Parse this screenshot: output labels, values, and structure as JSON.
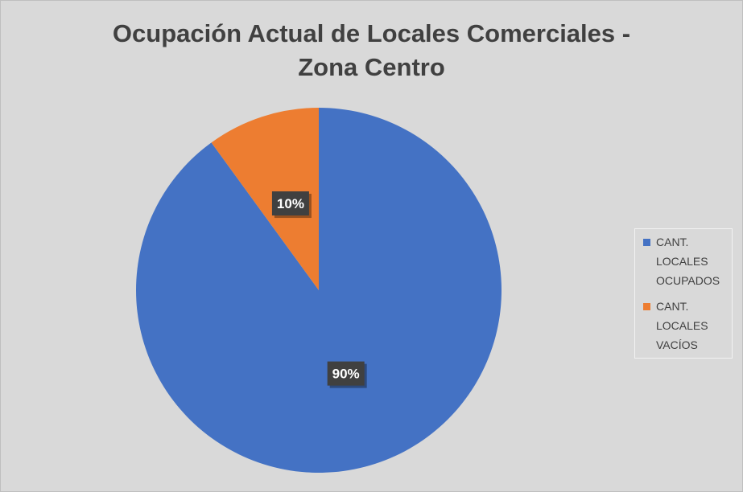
{
  "chart_data": {
    "type": "pie",
    "title_lines": [
      "Ocupación Actual de Locales Comerciales -",
      "Zona Centro"
    ],
    "slices": [
      {
        "label_lines": [
          "CANT.",
          "LOCALES",
          "OCUPADOS"
        ],
        "value": 90,
        "display": "90%",
        "color": "#4472c4"
      },
      {
        "label_lines": [
          "CANT.",
          "LOCALES",
          "VACÍOS"
        ],
        "value": 10,
        "display": "10%",
        "color": "#ed7d31"
      }
    ],
    "start_angle_deg": 0,
    "direction": "clockwise",
    "legend_position": "right"
  }
}
